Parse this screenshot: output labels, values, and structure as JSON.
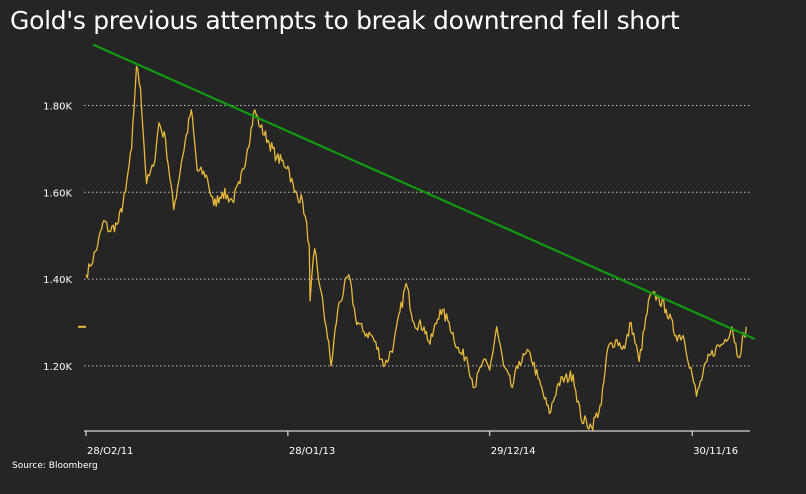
{
  "title": "Gold's previous attempts to break downtrend fell short",
  "source": "Source: Bloomberg",
  "colors": {
    "background": "#252525",
    "price_line": "#e8b93a",
    "trend_line": "#0f9a0f",
    "grid": "#bfbfbf"
  },
  "chart_data": {
    "type": "line",
    "title": "Gold's previous attempts to break downtrend fell short",
    "xlabel": "",
    "ylabel": "",
    "x_range": [
      "2011-02-28",
      "2017-06-15"
    ],
    "ylim": [
      1050,
      1960
    ],
    "y_ticks": [
      {
        "value": 1200,
        "label": "1.20K"
      },
      {
        "value": 1400,
        "label": "1.40K"
      },
      {
        "value": 1600,
        "label": "1.60K"
      },
      {
        "value": 1800,
        "label": "1.80K"
      }
    ],
    "x_ticks": [
      {
        "x": "2011-02-28",
        "label": "28/O2/11"
      },
      {
        "x": "2013-01-28",
        "label": "28/O1/13"
      },
      {
        "x": "2014-12-29",
        "label": "29/12/14"
      },
      {
        "x": "2016-11-30",
        "label": "30/11/16"
      }
    ],
    "grid": "horizontal-dotted",
    "last_value_marker": 1290,
    "series": [
      {
        "type": "line",
        "x": [
          "2011-02-28",
          "2011-03-15",
          "2011-04-10",
          "2011-05-01",
          "2011-05-20",
          "2011-06-20",
          "2011-07-15",
          "2011-08-05",
          "2011-08-22",
          "2011-09-05",
          "2011-09-26",
          "2011-10-20",
          "2011-11-08",
          "2011-12-01",
          "2011-12-29",
          "2012-01-25",
          "2012-02-28",
          "2012-03-20",
          "2012-04-20",
          "2012-05-16",
          "2012-06-15",
          "2012-07-20",
          "2012-08-15",
          "2012-09-10",
          "2012-10-05",
          "2012-10-25",
          "2012-11-20",
          "2012-12-20",
          "2013-01-28",
          "2013-02-20",
          "2013-03-20",
          "2013-04-12",
          "2013-04-15",
          "2013-05-01",
          "2013-05-20",
          "2013-06-10",
          "2013-06-27",
          "2013-07-20",
          "2013-08-27",
          "2013-09-20",
          "2013-10-15",
          "2013-11-15",
          "2013-12-30",
          "2014-01-30",
          "2014-03-14",
          "2014-04-10",
          "2014-05-15",
          "2014-06-05",
          "2014-07-10",
          "2014-08-10",
          "2014-09-15",
          "2014-10-10",
          "2014-11-06",
          "2014-12-05",
          "2014-12-29",
          "2015-01-22",
          "2015-02-15",
          "2015-03-17",
          "2015-04-10",
          "2015-05-18",
          "2015-06-15",
          "2015-07-24",
          "2015-08-24",
          "2015-10-14",
          "2015-11-10",
          "2015-12-17",
          "2016-01-20",
          "2016-02-11",
          "2016-03-10",
          "2016-04-10",
          "2016-05-02",
          "2016-05-30",
          "2016-07-06",
          "2016-08-01",
          "2016-09-01",
          "2016-10-05",
          "2016-10-30",
          "2016-11-30",
          "2016-12-15",
          "2017-01-20",
          "2017-02-20",
          "2017-03-15",
          "2017-04-17",
          "2017-05-09",
          "2017-06-06"
        ],
        "y": [
          1410,
          1430,
          1480,
          1535,
          1510,
          1530,
          1600,
          1700,
          1890,
          1840,
          1620,
          1660,
          1760,
          1720,
          1560,
          1670,
          1790,
          1650,
          1640,
          1570,
          1600,
          1580,
          1620,
          1700,
          1790,
          1750,
          1720,
          1680,
          1660,
          1600,
          1580,
          1480,
          1350,
          1470,
          1380,
          1290,
          1200,
          1330,
          1410,
          1310,
          1280,
          1270,
          1200,
          1250,
          1390,
          1300,
          1290,
          1250,
          1330,
          1300,
          1230,
          1220,
          1150,
          1210,
          1190,
          1290,
          1200,
          1150,
          1210,
          1230,
          1170,
          1090,
          1160,
          1180,
          1080,
          1060,
          1110,
          1240,
          1260,
          1240,
          1300,
          1210,
          1360,
          1360,
          1330,
          1270,
          1270,
          1180,
          1130,
          1210,
          1240,
          1250,
          1290,
          1220,
          1290
        ]
      },
      {
        "type": "trendline",
        "x": [
          "2011-03-25",
          "2017-07-05"
        ],
        "y": [
          1940,
          1262
        ]
      }
    ]
  }
}
